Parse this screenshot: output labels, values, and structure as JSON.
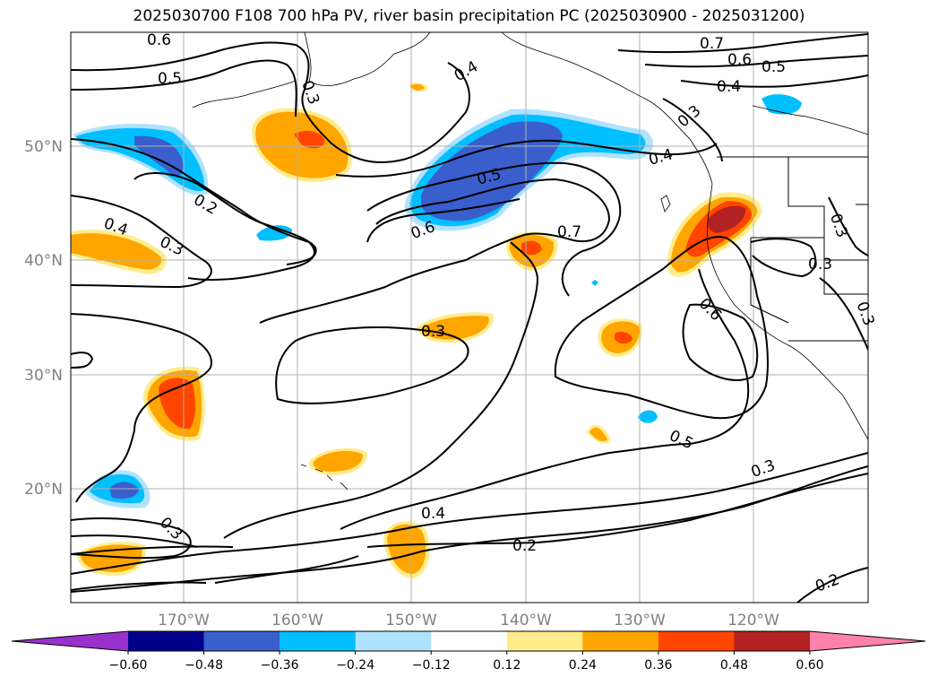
{
  "title": "2025030700 F108 700 hPa PV, river basin precipitation PC (2025030900 - 2025031200)",
  "map": {
    "projection": "PlateCarree",
    "lon_range": [
      -180,
      -110
    ],
    "lat_range": [
      10,
      60
    ],
    "gridlines": true,
    "lon_tick_labels": [
      "170°W",
      "160°W",
      "150°W",
      "140°W",
      "130°W",
      "120°W"
    ],
    "lat_tick_labels": [
      "20°N",
      "30°N",
      "40°N",
      "50°N"
    ]
  },
  "pv_contour_labels": [
    "0.6",
    "0.5",
    "0.3",
    "0.4",
    "0.7",
    "0.6",
    "0.5",
    "0.4",
    "0.3",
    "0.4",
    "0.5",
    "0.6",
    "0.7",
    "0.2",
    "0.4",
    "0.3",
    "0.3",
    "0.3",
    "0.3",
    "0.6",
    "0.3",
    "0.5",
    "0.3",
    "0.3",
    "0.4",
    "0.2",
    "0.2"
  ],
  "precip_pc": {
    "colorbar": {
      "tick_labels": [
        "−0.60",
        "−0.48",
        "−0.36",
        "−0.24",
        "−0.12",
        "0.12",
        "0.24",
        "0.36",
        "0.48",
        "0.60"
      ],
      "colors": [
        "#9932cc",
        "#00008b",
        "#3a5fcd",
        "#00bfff",
        "#b0e2ff",
        "#ffffff",
        "#ffec8b",
        "#ffa500",
        "#ff4500",
        "#b22222",
        "#ff82ab"
      ],
      "extend": "both"
    }
  },
  "colors": {
    "contour": "#000000",
    "grid": "#b0b0b0",
    "tick_label": "#808080"
  }
}
